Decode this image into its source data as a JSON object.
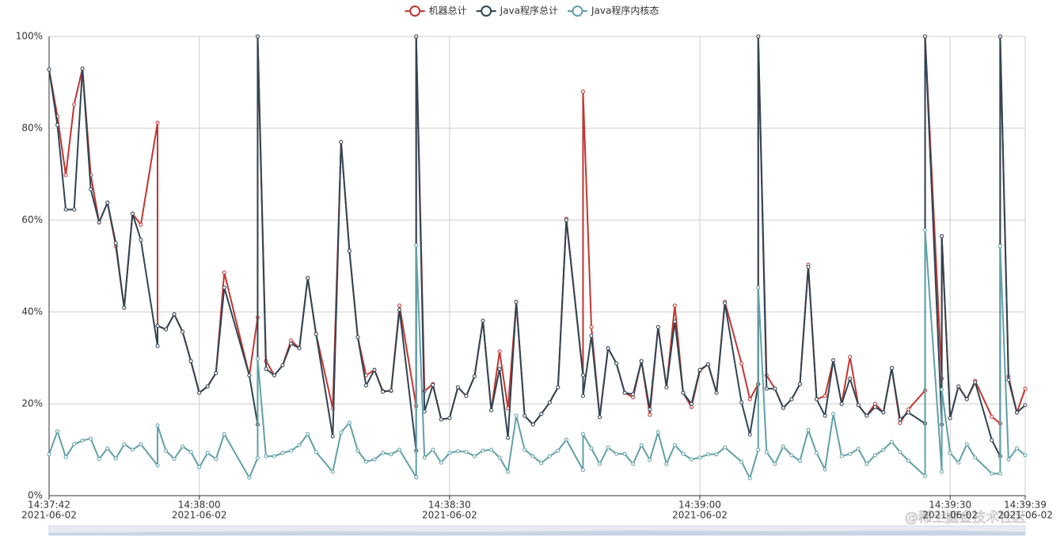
{
  "chart_data": {
    "type": "line",
    "x": [
      "2021-06-02 14:37:42",
      "2021-06-02 14:37:43",
      "2021-06-02 14:37:44",
      "2021-06-02 14:37:45",
      "2021-06-02 14:37:46",
      "2021-06-02 14:37:47",
      "2021-06-02 14:37:48",
      "2021-06-02 14:37:49",
      "2021-06-02 14:37:50",
      "2021-06-02 14:37:51",
      "2021-06-02 14:37:52",
      "2021-06-02 14:37:53",
      "2021-06-02 14:37:55",
      "2021-06-02 14:37:55",
      "2021-06-02 14:37:56",
      "2021-06-02 14:37:57",
      "2021-06-02 14:37:58",
      "2021-06-02 14:37:59",
      "2021-06-02 14:38:00",
      "2021-06-02 14:38:01",
      "2021-06-02 14:38:02",
      "2021-06-02 14:38:03",
      "2021-06-02 14:38:06",
      "2021-06-02 14:38:07",
      "2021-06-02 14:38:07",
      "2021-06-02 14:38:08",
      "2021-06-02 14:38:09",
      "2021-06-02 14:38:10",
      "2021-06-02 14:38:11",
      "2021-06-02 14:38:12",
      "2021-06-02 14:38:13",
      "2021-06-02 14:38:14",
      "2021-06-02 14:38:16",
      "2021-06-02 14:38:17",
      "2021-06-02 14:38:18",
      "2021-06-02 14:38:19",
      "2021-06-02 14:38:20",
      "2021-06-02 14:38:21",
      "2021-06-02 14:38:22",
      "2021-06-02 14:38:23",
      "2021-06-02 14:38:24",
      "2021-06-02 14:38:26",
      "2021-06-02 14:38:26",
      "2021-06-02 14:38:27",
      "2021-06-02 14:38:28",
      "2021-06-02 14:38:29",
      "2021-06-02 14:38:30",
      "2021-06-02 14:38:31",
      "2021-06-02 14:38:32",
      "2021-06-02 14:38:33",
      "2021-06-02 14:38:34",
      "2021-06-02 14:38:35",
      "2021-06-02 14:38:36",
      "2021-06-02 14:38:37",
      "2021-06-02 14:38:38",
      "2021-06-02 14:38:39",
      "2021-06-02 14:38:40",
      "2021-06-02 14:38:41",
      "2021-06-02 14:38:42",
      "2021-06-02 14:38:43",
      "2021-06-02 14:38:44",
      "2021-06-02 14:38:46",
      "2021-06-02 14:38:46",
      "2021-06-02 14:38:47",
      "2021-06-02 14:38:48",
      "2021-06-02 14:38:49",
      "2021-06-02 14:38:50",
      "2021-06-02 14:38:51",
      "2021-06-02 14:38:52",
      "2021-06-02 14:38:53",
      "2021-06-02 14:38:54",
      "2021-06-02 14:38:55",
      "2021-06-02 14:38:56",
      "2021-06-02 14:38:57",
      "2021-06-02 14:38:58",
      "2021-06-02 14:38:59",
      "2021-06-02 14:39:00",
      "2021-06-02 14:39:01",
      "2021-06-02 14:39:02",
      "2021-06-02 14:39:03",
      "2021-06-02 14:39:05",
      "2021-06-02 14:39:06",
      "2021-06-02 14:39:07",
      "2021-06-02 14:39:07",
      "2021-06-02 14:39:08",
      "2021-06-02 14:39:09",
      "2021-06-02 14:39:10",
      "2021-06-02 14:39:11",
      "2021-06-02 14:39:12",
      "2021-06-02 14:39:13",
      "2021-06-02 14:39:14",
      "2021-06-02 14:39:15",
      "2021-06-02 14:39:16",
      "2021-06-02 14:39:17",
      "2021-06-02 14:39:18",
      "2021-06-02 14:39:19",
      "2021-06-02 14:39:20",
      "2021-06-02 14:39:21",
      "2021-06-02 14:39:22",
      "2021-06-02 14:39:23",
      "2021-06-02 14:39:24",
      "2021-06-02 14:39:25",
      "2021-06-02 14:39:27",
      "2021-06-02 14:39:27",
      "2021-06-02 14:39:29",
      "2021-06-02 14:39:29",
      "2021-06-02 14:39:30",
      "2021-06-02 14:39:31",
      "2021-06-02 14:39:32",
      "2021-06-02 14:39:33",
      "2021-06-02 14:39:35",
      "2021-06-02 14:39:36",
      "2021-06-02 14:39:36",
      "2021-06-02 14:39:37",
      "2021-06-02 14:39:38",
      "2021-06-02 14:39:39"
    ],
    "series": [
      {
        "name": "机器总计",
        "color": "#c23531",
        "values": [
          92.8,
          82.6,
          69.8,
          85.2,
          93.0,
          69.8,
          59.5,
          63.8,
          54.3,
          40.9,
          61.4,
          59.0,
          81.2,
          37.0,
          36.2,
          39.5,
          35.7,
          29.3,
          22.4,
          23.8,
          26.7,
          48.6,
          26.2,
          38.8,
          100,
          29.3,
          26.2,
          28.4,
          33.8,
          32.1,
          47.4,
          35.2,
          19.0,
          77.0,
          53.3,
          34.5,
          26.2,
          27.4,
          22.8,
          22.8,
          41.4,
          19.5,
          100,
          22.8,
          24.3,
          16.6,
          16.9,
          23.6,
          21.7,
          26.0,
          38.1,
          18.6,
          31.4,
          19.0,
          42.2,
          17.4,
          15.5,
          17.8,
          20.3,
          23.6,
          60.3,
          26.2,
          88.0,
          36.7,
          17.1,
          32.1,
          28.8,
          22.4,
          21.4,
          29.3,
          17.6,
          36.7,
          23.6,
          41.4,
          22.4,
          19.3,
          27.2,
          28.6,
          22.4,
          42.2,
          28.8,
          21.0,
          24.3,
          100,
          26.2,
          23.3,
          19.1,
          21.0,
          24.3,
          50.3,
          21.0,
          21.7,
          29.5,
          20.0,
          30.2,
          19.7,
          17.4,
          20.0,
          18.1,
          27.8,
          15.8,
          18.8,
          22.9,
          100,
          25.5,
          56.5,
          16.9,
          23.8,
          21.0,
          25.0,
          17.2,
          15.7,
          100,
          25.9,
          18.1,
          23.3
        ]
      },
      {
        "name": "Java程序总计",
        "color": "#2f4554",
        "values": [
          92.8,
          80.7,
          62.3,
          62.3,
          93.0,
          66.7,
          59.5,
          63.8,
          55.0,
          40.9,
          61.4,
          55.7,
          32.6,
          37.0,
          36.2,
          39.5,
          35.7,
          29.3,
          22.4,
          23.8,
          26.7,
          45.3,
          26.2,
          15.5,
          100,
          27.6,
          26.2,
          28.4,
          33.1,
          32.1,
          47.4,
          35.2,
          12.9,
          77.0,
          53.3,
          34.5,
          24.0,
          27.4,
          22.6,
          22.9,
          40.5,
          9.8,
          100,
          18.3,
          24.1,
          16.6,
          16.9,
          23.6,
          21.7,
          26.0,
          38.1,
          18.6,
          27.6,
          12.6,
          42.2,
          17.4,
          15.5,
          17.8,
          20.3,
          23.6,
          60.0,
          26.2,
          21.7,
          34.8,
          17.1,
          32.1,
          28.8,
          22.4,
          22.1,
          29.3,
          18.8,
          36.7,
          23.6,
          37.9,
          22.4,
          20.0,
          27.4,
          28.6,
          22.4,
          41.9,
          20.3,
          13.3,
          24.3,
          100,
          23.3,
          23.3,
          19.1,
          21.0,
          24.3,
          49.8,
          21.0,
          17.4,
          29.5,
          20.0,
          25.5,
          19.7,
          17.4,
          19.3,
          18.1,
          27.8,
          16.6,
          18.1,
          15.7,
          100,
          15.5,
          56.5,
          16.9,
          23.8,
          21.0,
          24.7,
          12.1,
          8.6,
          100,
          25.2,
          18.1,
          19.7
        ]
      },
      {
        "name": "Java程序内核态",
        "color": "#61a0a8",
        "values": [
          9.0,
          14.0,
          8.4,
          11.2,
          12.0,
          12.4,
          8.0,
          10.3,
          8.1,
          11.2,
          10.0,
          11.2,
          6.6,
          15.3,
          9.8,
          8.0,
          10.7,
          9.5,
          6.2,
          9.3,
          8.0,
          13.4,
          3.9,
          8.2,
          29.8,
          8.6,
          8.6,
          9.3,
          9.8,
          11.0,
          13.4,
          9.5,
          5.2,
          13.8,
          15.9,
          9.8,
          7.4,
          7.9,
          9.3,
          9.0,
          10.0,
          4.0,
          54.5,
          8.3,
          10.0,
          7.2,
          9.3,
          9.7,
          9.5,
          8.6,
          9.8,
          10.0,
          8.3,
          5.2,
          17.4,
          10.0,
          8.6,
          7.1,
          8.6,
          9.8,
          12.2,
          5.6,
          13.4,
          10.3,
          6.9,
          10.5,
          9.1,
          9.1,
          6.9,
          11.0,
          7.8,
          13.8,
          6.9,
          11.0,
          9.1,
          7.9,
          8.3,
          9.0,
          9.0,
          10.5,
          7.4,
          3.8,
          10.0,
          45.3,
          9.5,
          6.9,
          10.7,
          8.8,
          7.6,
          14.3,
          9.3,
          5.7,
          17.8,
          8.6,
          9.1,
          10.2,
          6.9,
          8.8,
          10.0,
          11.7,
          9.5,
          7.6,
          4.3,
          57.8,
          5.2,
          23.1,
          9.3,
          7.2,
          11.2,
          8.3,
          4.8,
          4.8,
          54.3,
          7.9,
          10.3,
          8.8
        ]
      }
    ],
    "xlim": [
      "2021-06-02 14:37:42",
      "2021-06-02 14:39:39"
    ],
    "xticks": [
      {
        "value": "2021-06-02 14:37:42",
        "label": [
          "14:37:42",
          "2021-06-02"
        ]
      },
      {
        "value": "2021-06-02 14:38:00",
        "label": [
          "14:38:00",
          "2021-06-02"
        ]
      },
      {
        "value": "2021-06-02 14:38:30",
        "label": [
          "14:38:30",
          "2021-06-02"
        ]
      },
      {
        "value": "2021-06-02 14:39:00",
        "label": [
          "14:39:00",
          "2021-06-02"
        ]
      },
      {
        "value": "2021-06-02 14:39:30",
        "label": [
          "14:39:30",
          "2021-06-02"
        ]
      },
      {
        "value": "2021-06-02 14:39:39",
        "label": [
          "14:39:39",
          "2021-06-02"
        ]
      }
    ],
    "ylim": [
      0,
      100
    ],
    "yticks": [
      {
        "value": 0,
        "label": "0%"
      },
      {
        "value": 20,
        "label": "20%"
      },
      {
        "value": 40,
        "label": "40%"
      },
      {
        "value": 60,
        "label": "60%"
      },
      {
        "value": 80,
        "label": "80%"
      },
      {
        "value": 100,
        "label": "100%"
      }
    ],
    "grid": true,
    "legend": "top",
    "watermark": "@稀土掘金技术社区"
  }
}
